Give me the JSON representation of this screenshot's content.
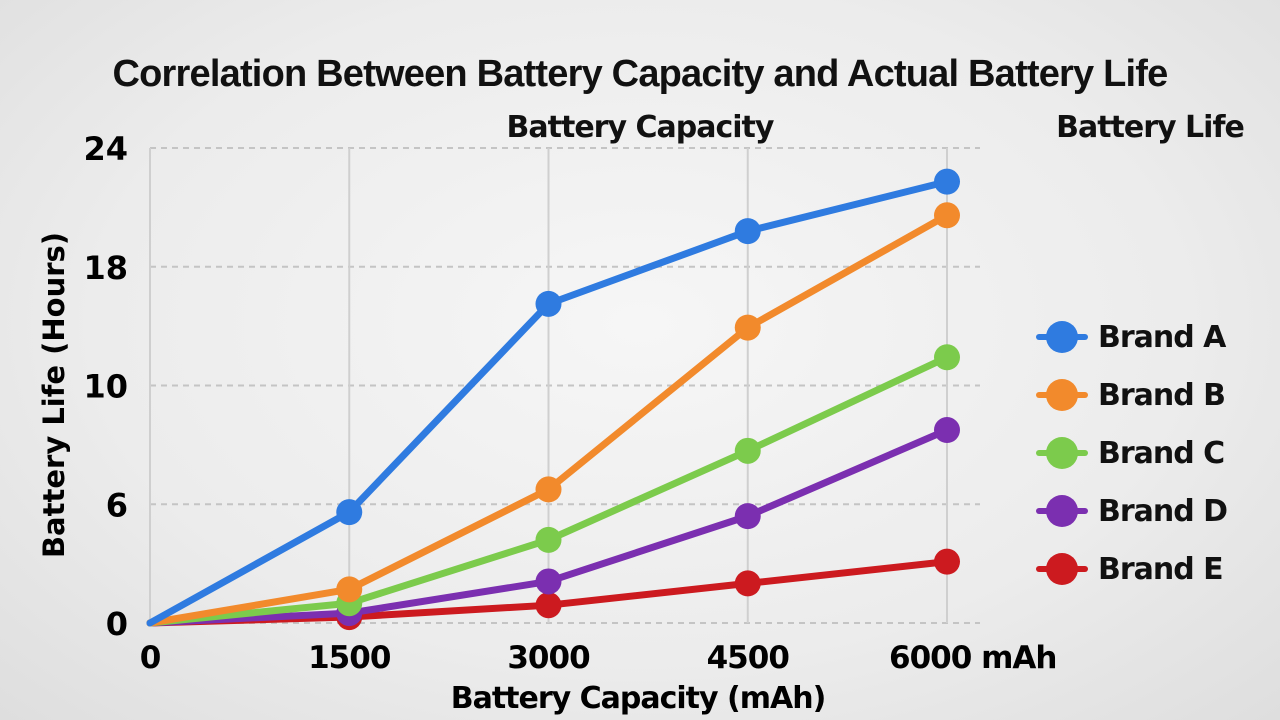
{
  "chart_data": {
    "type": "line",
    "title": "Correlation Between Battery Capacity and Actual Battery Life",
    "subtitle": "Battery Capacity",
    "legend_title": "Battery Life",
    "xlabel": "Battery Capacity (mAh)",
    "ylabel": "Battery Life (Hours)",
    "x": [
      0,
      1500,
      3000,
      4500,
      6000
    ],
    "x_tick_labels": [
      "0",
      "1500",
      "3000",
      "4500",
      "6000 mAh"
    ],
    "xlim": [
      0,
      6000
    ],
    "y_ticks": [
      0,
      6,
      10,
      18,
      24
    ],
    "y_tick_labels": [
      "0",
      "6",
      "10",
      "18",
      "24"
    ],
    "ylim": [
      0,
      24
    ],
    "grid": true,
    "legend_position": "right",
    "series": [
      {
        "name": "Brand A",
        "color": "#2f7be0",
        "values": [
          0,
          5.6,
          15.5,
          19.8,
          22.3
        ]
      },
      {
        "name": "Brand B",
        "color": "#f28a2c",
        "values": [
          0,
          1.7,
          6.5,
          13.9,
          20.6
        ]
      },
      {
        "name": "Brand C",
        "color": "#7ccb4c",
        "values": [
          0,
          1.0,
          4.2,
          7.8,
          11.9
        ]
      },
      {
        "name": "Brand D",
        "color": "#7b2fb0",
        "values": [
          0,
          0.5,
          2.1,
          5.4,
          8.5
        ]
      },
      {
        "name": "Brand E",
        "color": "#cc1a1f",
        "values": [
          0,
          0.3,
          0.9,
          2.0,
          3.1
        ]
      }
    ]
  }
}
